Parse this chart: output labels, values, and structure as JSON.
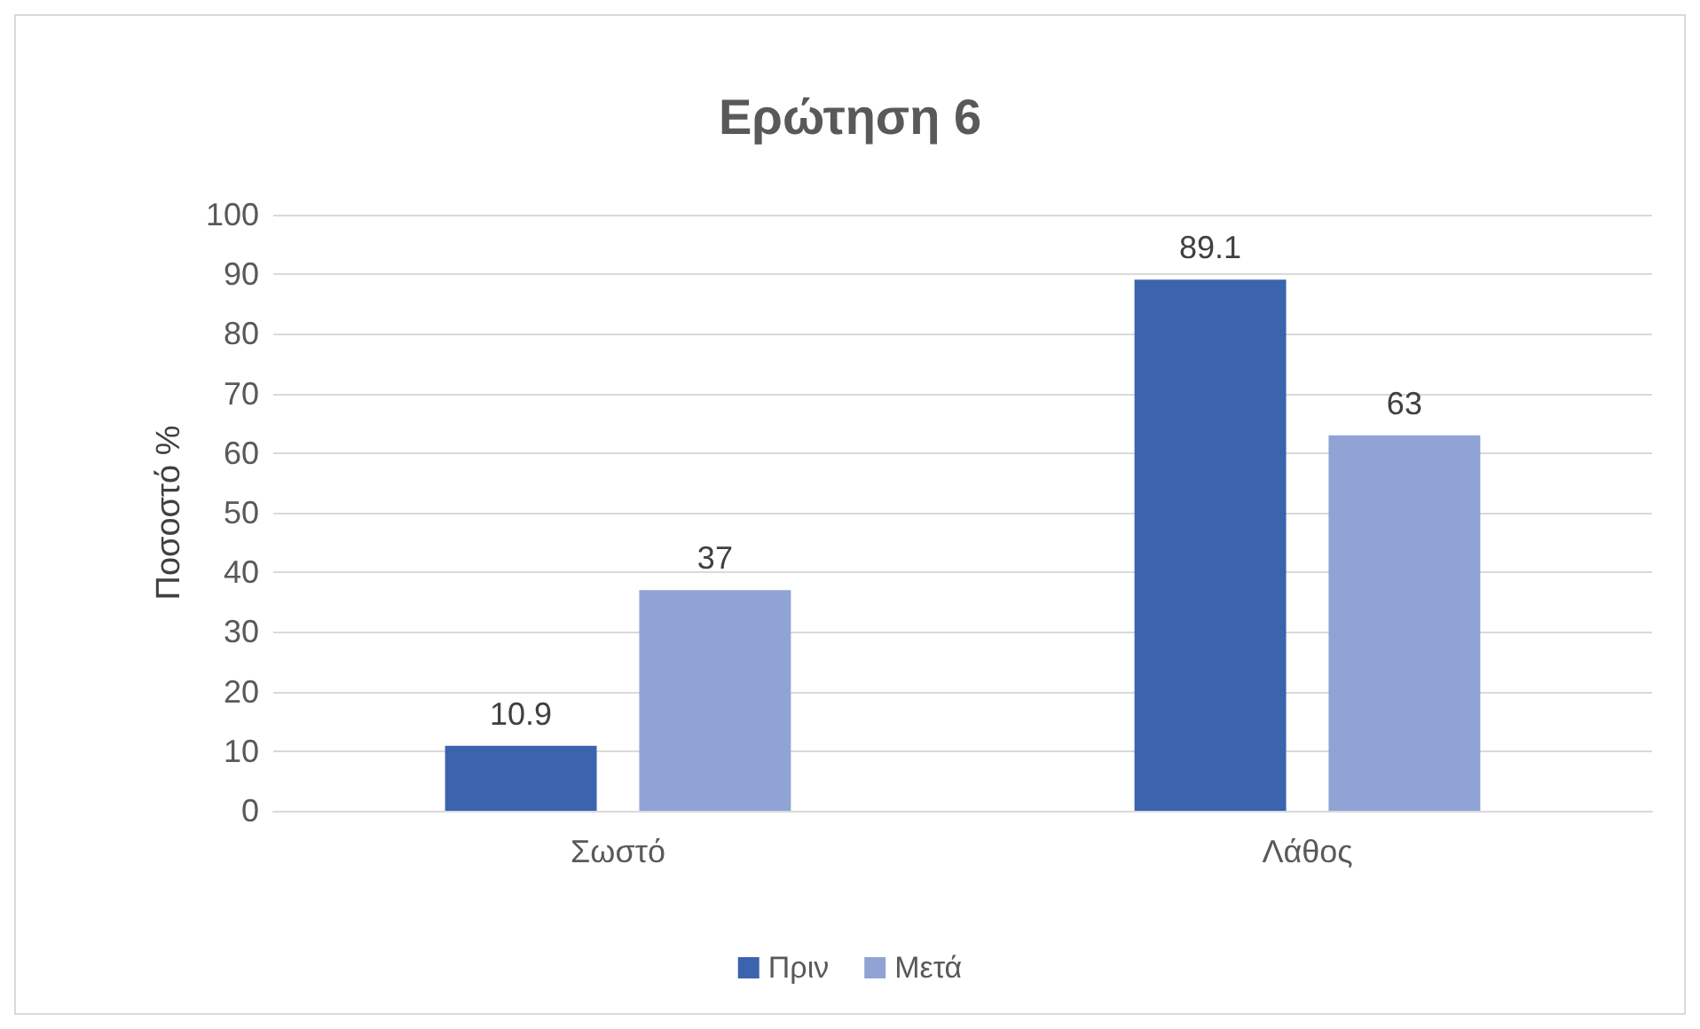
{
  "chart_data": {
    "type": "bar",
    "title": "Ερώτηση 6",
    "ylabel": "Ποσοστό %",
    "categories": [
      "Σωστό",
      "Λάθος"
    ],
    "series": [
      {
        "name": "Πριν",
        "color": "#3c63ad",
        "values": [
          10.9,
          89.1
        ]
      },
      {
        "name": "Μετά",
        "color": "#8fa4d5",
        "values": [
          37,
          63
        ]
      }
    ],
    "ylim": [
      0,
      100
    ],
    "yticks": [
      0,
      10,
      20,
      30,
      40,
      50,
      60,
      70,
      80,
      90,
      100
    ],
    "grid": "y",
    "legend": "bottom",
    "data_labels": true
  }
}
